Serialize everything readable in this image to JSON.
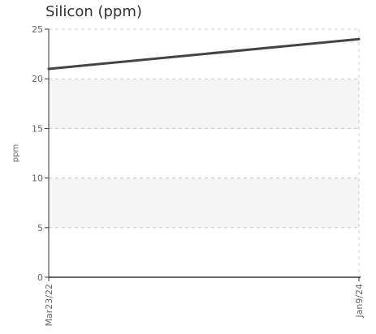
{
  "chart_data": {
    "type": "line",
    "title": "Silicon (ppm)",
    "ylabel": "ppm",
    "xlabel": "",
    "x": [
      "Mar23/22",
      "Jan9/24"
    ],
    "series": [
      {
        "values": [
          21,
          24
        ],
        "color": "#444444"
      }
    ],
    "ylim": [
      0,
      25
    ],
    "yticks": [
      0,
      5,
      10,
      15,
      20,
      25
    ],
    "grid": true,
    "band_color": "#f5f5f5",
    "grid_color": "#cccccc"
  }
}
